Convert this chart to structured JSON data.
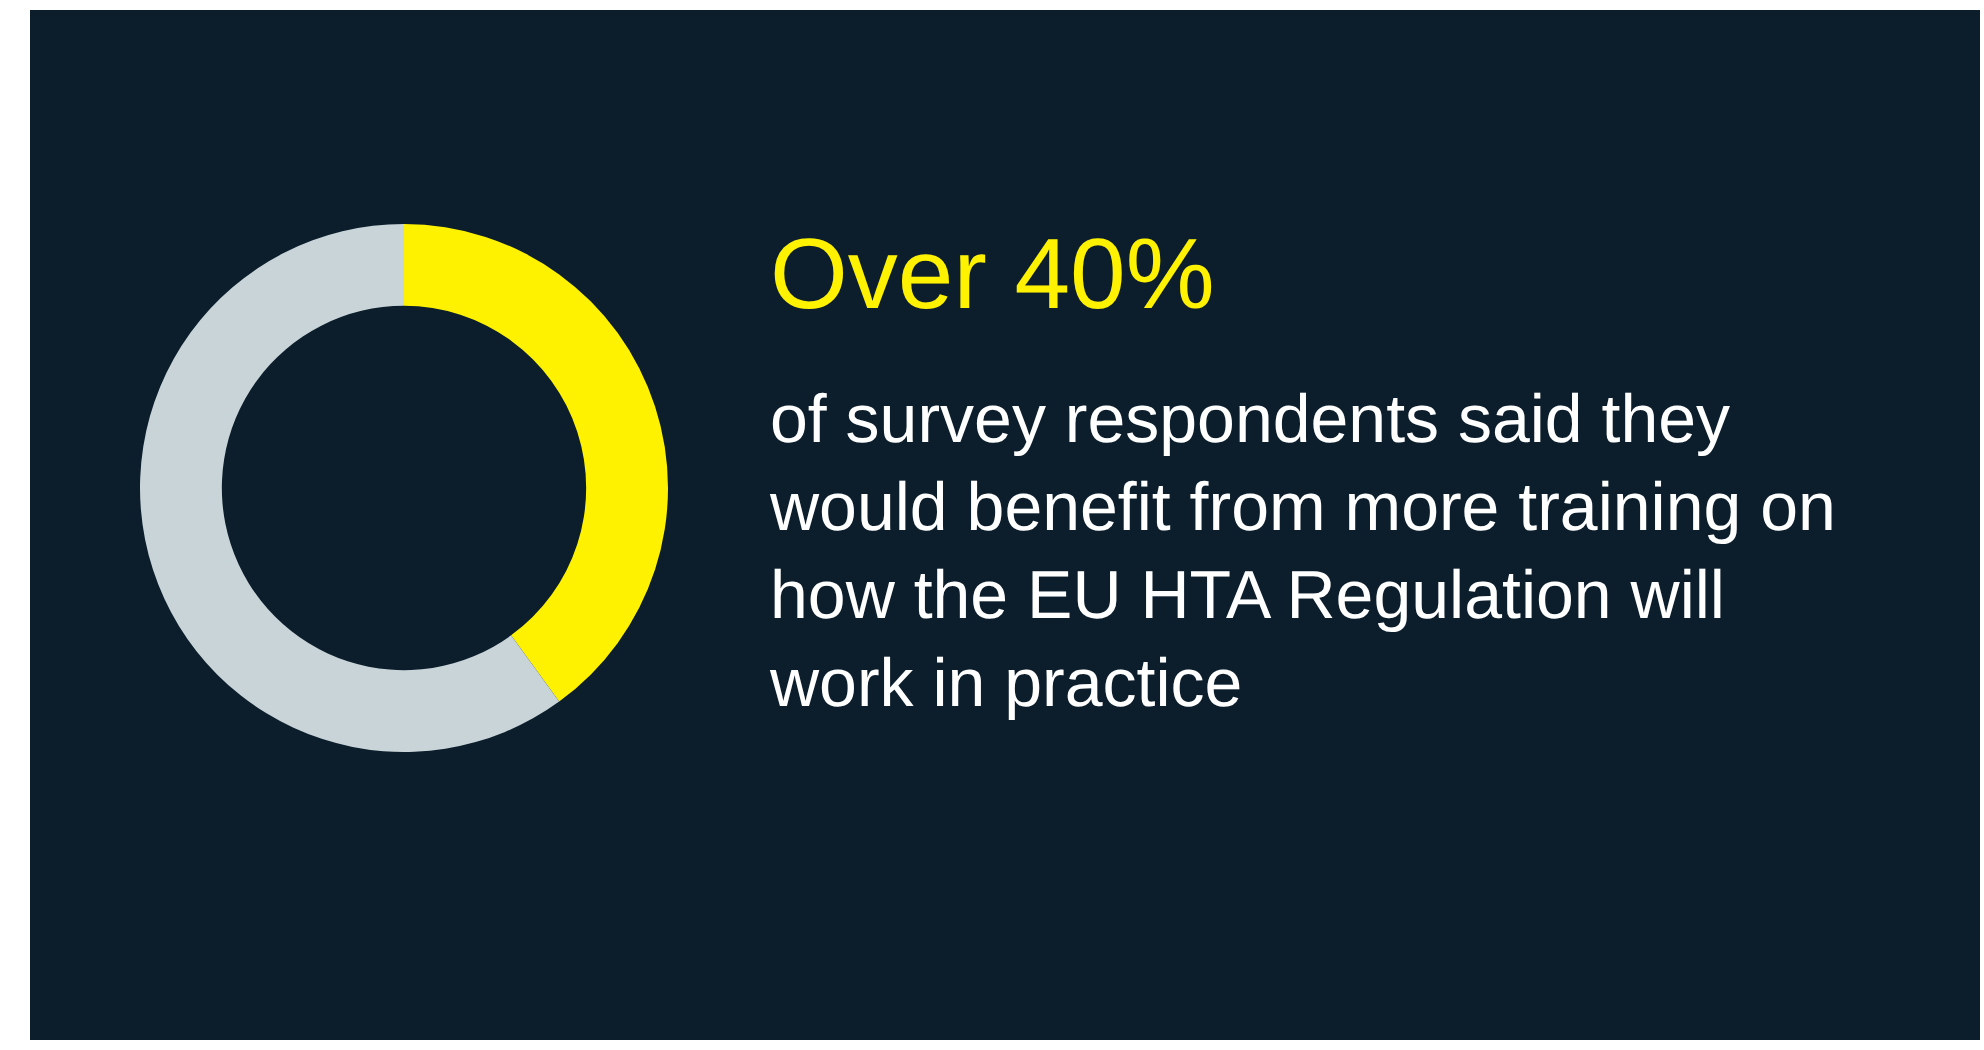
{
  "chart_data": {
    "type": "donut",
    "title": "Over 40%",
    "subtitle": "of survey respondents said they would benefit from more training on how the EU HTA Regulation will work in practice",
    "categories": [
      null,
      null
    ],
    "values": [
      40,
      60
    ],
    "colors": [
      "#fff200",
      "#c8d4d8"
    ]
  }
}
